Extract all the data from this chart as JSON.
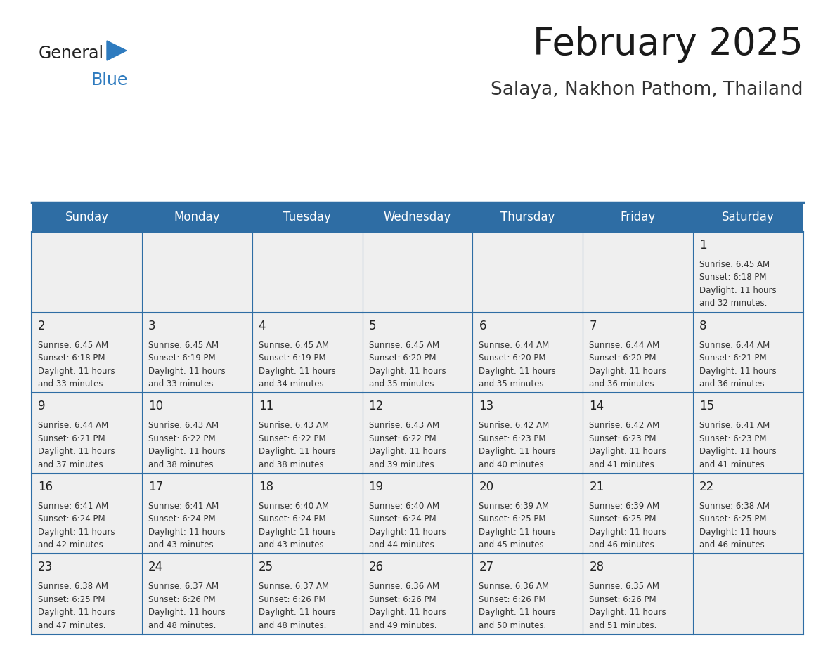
{
  "title": "February 2025",
  "subtitle": "Salaya, Nakhon Pathom, Thailand",
  "header_bg": "#2E6DA4",
  "header_text": "#FFFFFF",
  "cell_bg": "#EFEFEF",
  "day_names": [
    "Sunday",
    "Monday",
    "Tuesday",
    "Wednesday",
    "Thursday",
    "Friday",
    "Saturday"
  ],
  "grid_line_color": "#2E6DA4",
  "day_number_color": "#222222",
  "text_color": "#333333",
  "logo_general_color": "#222222",
  "logo_blue_color": "#2E7BBF",
  "calendar": [
    [
      null,
      null,
      null,
      null,
      null,
      null,
      1
    ],
    [
      2,
      3,
      4,
      5,
      6,
      7,
      8
    ],
    [
      9,
      10,
      11,
      12,
      13,
      14,
      15
    ],
    [
      16,
      17,
      18,
      19,
      20,
      21,
      22
    ],
    [
      23,
      24,
      25,
      26,
      27,
      28,
      null
    ]
  ],
  "sunrise": {
    "1": "6:45 AM",
    "2": "6:45 AM",
    "3": "6:45 AM",
    "4": "6:45 AM",
    "5": "6:45 AM",
    "6": "6:44 AM",
    "7": "6:44 AM",
    "8": "6:44 AM",
    "9": "6:44 AM",
    "10": "6:43 AM",
    "11": "6:43 AM",
    "12": "6:43 AM",
    "13": "6:42 AM",
    "14": "6:42 AM",
    "15": "6:41 AM",
    "16": "6:41 AM",
    "17": "6:41 AM",
    "18": "6:40 AM",
    "19": "6:40 AM",
    "20": "6:39 AM",
    "21": "6:39 AM",
    "22": "6:38 AM",
    "23": "6:38 AM",
    "24": "6:37 AM",
    "25": "6:37 AM",
    "26": "6:36 AM",
    "27": "6:36 AM",
    "28": "6:35 AM"
  },
  "sunset": {
    "1": "6:18 PM",
    "2": "6:18 PM",
    "3": "6:19 PM",
    "4": "6:19 PM",
    "5": "6:20 PM",
    "6": "6:20 PM",
    "7": "6:20 PM",
    "8": "6:21 PM",
    "9": "6:21 PM",
    "10": "6:22 PM",
    "11": "6:22 PM",
    "12": "6:22 PM",
    "13": "6:23 PM",
    "14": "6:23 PM",
    "15": "6:23 PM",
    "16": "6:24 PM",
    "17": "6:24 PM",
    "18": "6:24 PM",
    "19": "6:24 PM",
    "20": "6:25 PM",
    "21": "6:25 PM",
    "22": "6:25 PM",
    "23": "6:25 PM",
    "24": "6:26 PM",
    "25": "6:26 PM",
    "26": "6:26 PM",
    "27": "6:26 PM",
    "28": "6:26 PM"
  },
  "daylight": {
    "1": "11 hours and 32 minutes.",
    "2": "11 hours and 33 minutes.",
    "3": "11 hours and 33 minutes.",
    "4": "11 hours and 34 minutes.",
    "5": "11 hours and 35 minutes.",
    "6": "11 hours and 35 minutes.",
    "7": "11 hours and 36 minutes.",
    "8": "11 hours and 36 minutes.",
    "9": "11 hours and 37 minutes.",
    "10": "11 hours and 38 minutes.",
    "11": "11 hours and 38 minutes.",
    "12": "11 hours and 39 minutes.",
    "13": "11 hours and 40 minutes.",
    "14": "11 hours and 41 minutes.",
    "15": "11 hours and 41 minutes.",
    "16": "11 hours and 42 minutes.",
    "17": "11 hours and 43 minutes.",
    "18": "11 hours and 43 minutes.",
    "19": "11 hours and 44 minutes.",
    "20": "11 hours and 45 minutes.",
    "21": "11 hours and 46 minutes.",
    "22": "11 hours and 46 minutes.",
    "23": "11 hours and 47 minutes.",
    "24": "11 hours and 48 minutes.",
    "25": "11 hours and 48 minutes.",
    "26": "11 hours and 49 minutes.",
    "27": "11 hours and 50 minutes.",
    "28": "11 hours and 51 minutes."
  },
  "title_fontsize": 38,
  "subtitle_fontsize": 19,
  "header_fontsize": 12,
  "day_num_fontsize": 12,
  "cell_text_fontsize": 8.5
}
